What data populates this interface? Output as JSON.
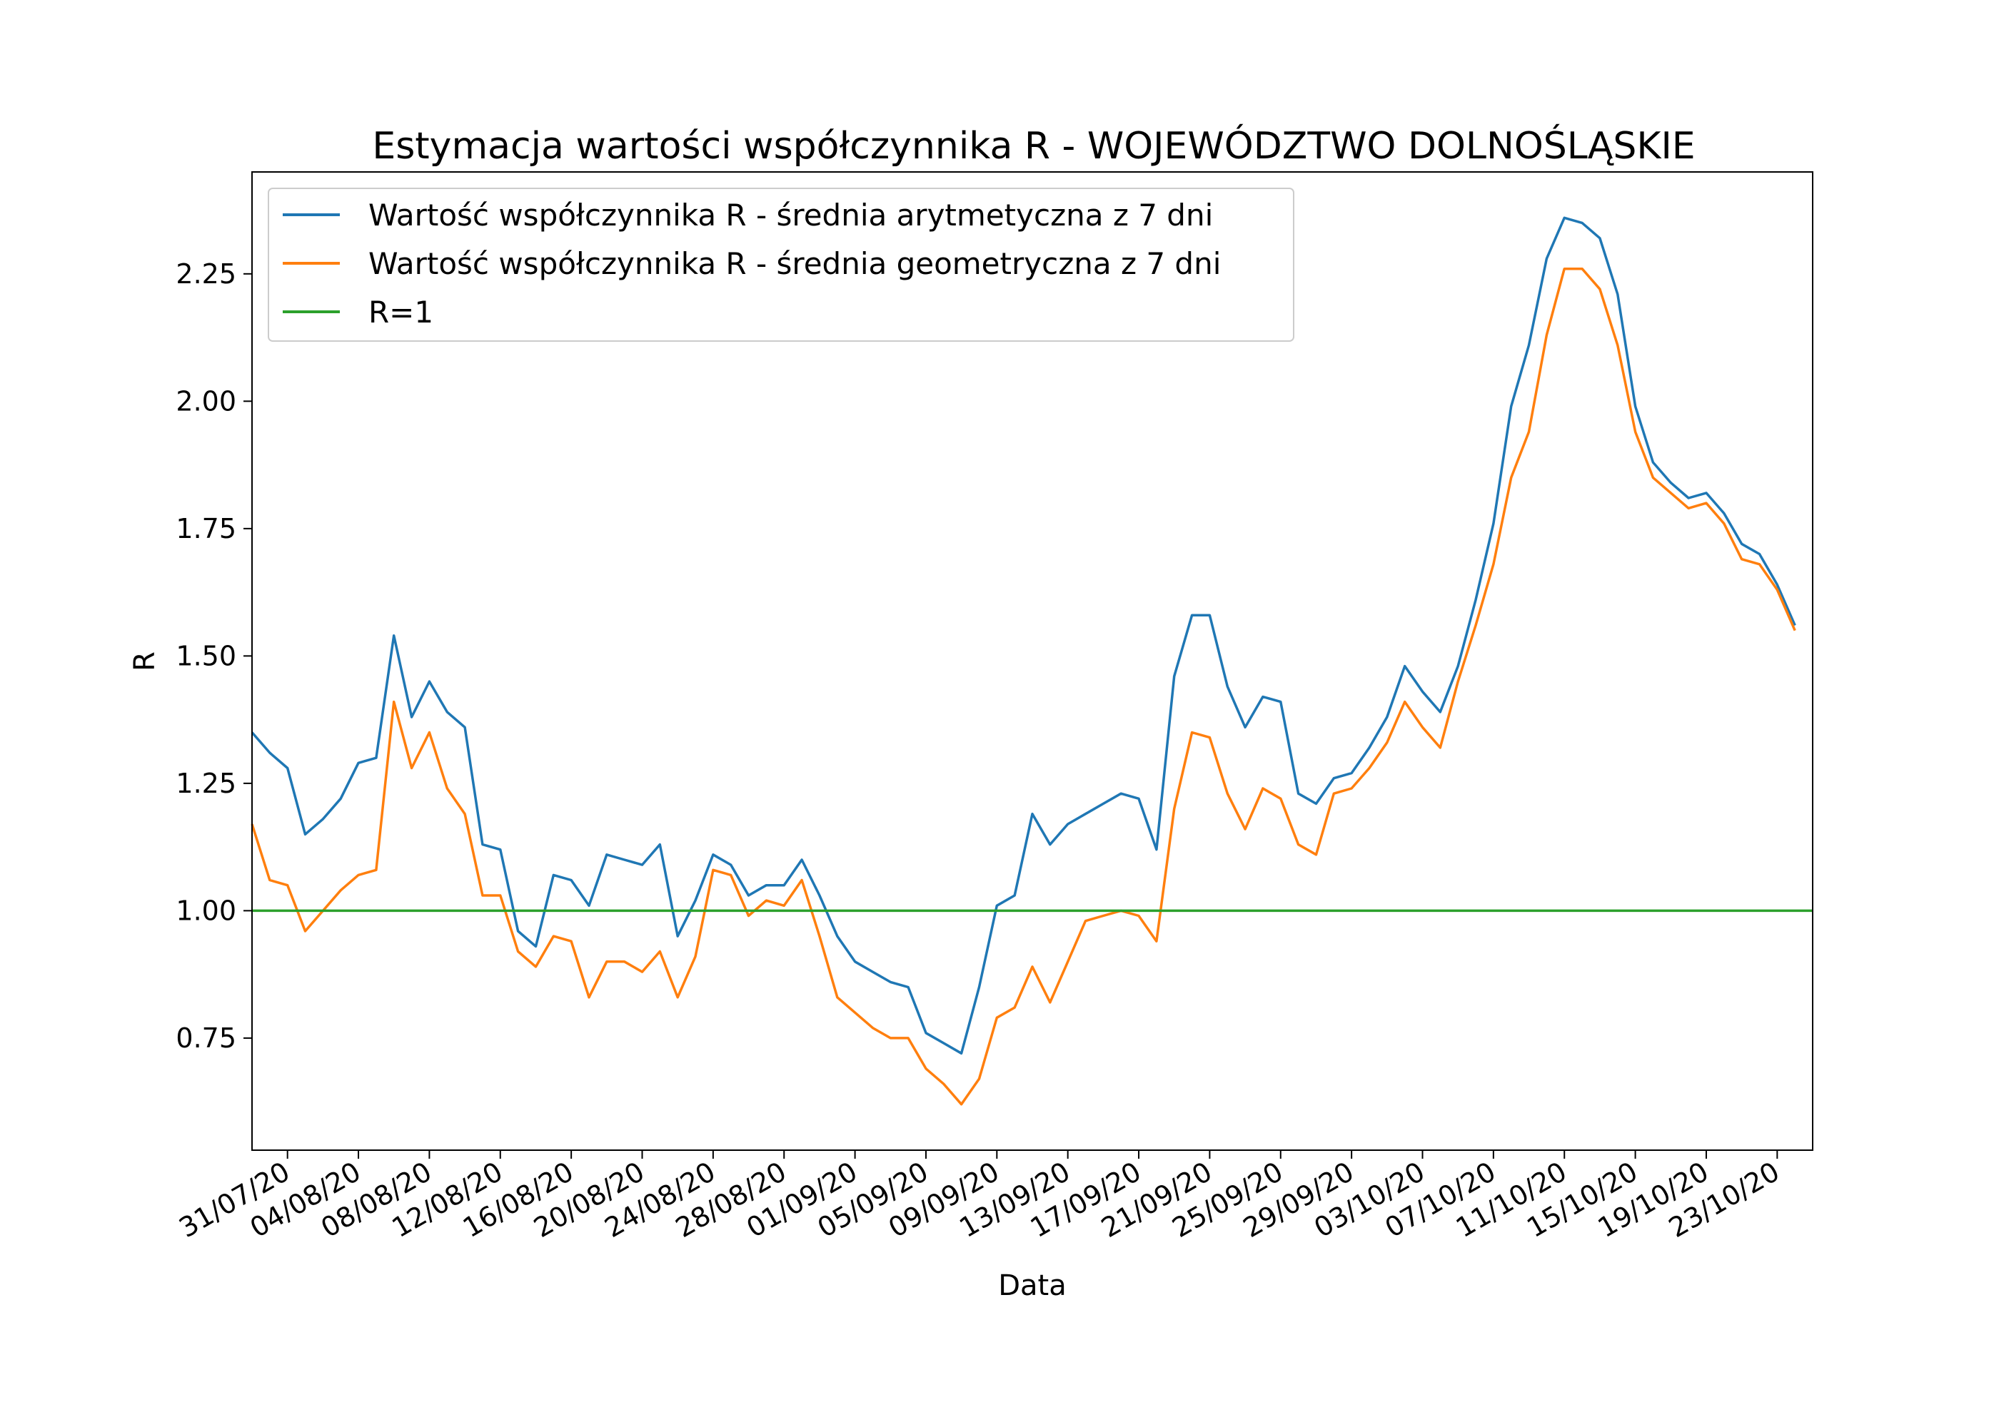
{
  "chart_data": {
    "type": "line",
    "title": "Estymacja wartości współczynnika R - WOJEWÓDZTWO DOLNOŚLĄSKIE",
    "xlabel": "Data",
    "ylabel": "R",
    "x_start": "2020-07-29",
    "x_step_days": 1,
    "xlim": [
      "2020-07-29",
      "2020-10-25"
    ],
    "ylim": [
      0.53,
      2.45
    ],
    "yticks": [
      "0.75",
      "1.00",
      "1.25",
      "1.50",
      "1.75",
      "2.00",
      "2.25"
    ],
    "xticks": [
      "31/07/20",
      "04/08/20",
      "08/08/20",
      "12/08/20",
      "16/08/20",
      "20/08/20",
      "24/08/20",
      "28/08/20",
      "01/09/20",
      "05/09/20",
      "09/09/20",
      "13/09/20",
      "17/09/20",
      "21/09/20",
      "25/09/20",
      "29/09/20",
      "03/10/20",
      "07/10/20",
      "11/10/20",
      "15/10/20",
      "19/10/20",
      "23/10/20"
    ],
    "grid": false,
    "legend_position": "top-left",
    "series": [
      {
        "name": "Wartość współczynnika R - średnia arytmetyczna z 7 dni",
        "color": "#1f77b4",
        "values": [
          1.35,
          1.31,
          1.28,
          1.15,
          1.18,
          1.22,
          1.29,
          1.3,
          1.54,
          1.38,
          1.45,
          1.39,
          1.36,
          1.13,
          1.12,
          0.96,
          0.93,
          1.07,
          1.06,
          1.01,
          1.11,
          1.1,
          1.09,
          1.13,
          0.95,
          1.02,
          1.11,
          1.09,
          1.03,
          1.05,
          1.05,
          1.1,
          1.03,
          0.95,
          0.9,
          0.88,
          0.86,
          0.85,
          0.76,
          0.74,
          0.72,
          0.85,
          1.01,
          1.03,
          1.19,
          1.13,
          1.17,
          1.19,
          1.21,
          1.23,
          1.22,
          1.12,
          1.46,
          1.58,
          1.58,
          1.44,
          1.36,
          1.42,
          1.41,
          1.23,
          1.21,
          1.26,
          1.27,
          1.32,
          1.38,
          1.48,
          1.43,
          1.39,
          1.48,
          1.61,
          1.76,
          1.99,
          2.11,
          2.28,
          2.36,
          2.35,
          2.32,
          2.21,
          1.99,
          1.88,
          1.84,
          1.81,
          1.82,
          1.78,
          1.72,
          1.7,
          1.64,
          1.56
        ]
      },
      {
        "name": "Wartość współczynnika R - średnia geometryczna z 7 dni",
        "color": "#ff7f0e",
        "values": [
          1.17,
          1.06,
          1.05,
          0.96,
          1.0,
          1.04,
          1.07,
          1.08,
          1.41,
          1.28,
          1.35,
          1.24,
          1.19,
          1.03,
          1.03,
          0.92,
          0.89,
          0.95,
          0.94,
          0.83,
          0.9,
          0.9,
          0.88,
          0.92,
          0.83,
          0.91,
          1.08,
          1.07,
          0.99,
          1.02,
          1.01,
          1.06,
          0.95,
          0.83,
          0.8,
          0.77,
          0.75,
          0.75,
          0.69,
          0.66,
          0.62,
          0.67,
          0.79,
          0.81,
          0.89,
          0.82,
          0.9,
          0.98,
          0.99,
          1.0,
          0.99,
          0.94,
          1.2,
          1.35,
          1.34,
          1.23,
          1.16,
          1.24,
          1.22,
          1.13,
          1.11,
          1.23,
          1.24,
          1.28,
          1.33,
          1.41,
          1.36,
          1.32,
          1.45,
          1.56,
          1.68,
          1.85,
          1.94,
          2.13,
          2.26,
          2.26,
          2.22,
          2.11,
          1.94,
          1.85,
          1.82,
          1.79,
          1.8,
          1.76,
          1.69,
          1.68,
          1.63,
          1.55
        ]
      },
      {
        "name": "R=1",
        "color": "#2ca02c",
        "values": [
          1.0,
          1.0
        ]
      }
    ]
  }
}
